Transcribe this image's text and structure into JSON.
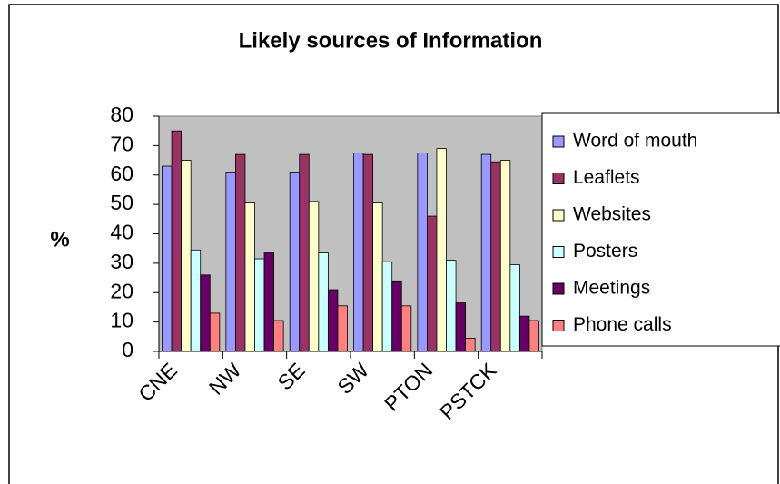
{
  "chart_data": {
    "type": "bar",
    "title": "Likely sources of Information",
    "y_label": "%",
    "categories": [
      "CNE",
      "NW",
      "SE",
      "SW",
      "PTON",
      "PSTCK"
    ],
    "series": [
      {
        "name": "Word of mouth",
        "color": "#9999ff",
        "values": [
          63,
          61,
          61,
          67.5,
          67.5,
          67
        ]
      },
      {
        "name": "Leaflets",
        "color": "#993366",
        "values": [
          75,
          67,
          67,
          67,
          46,
          64.5
        ]
      },
      {
        "name": "Websites",
        "color": "#ffffcc",
        "values": [
          65,
          50.5,
          51,
          50.5,
          69,
          65
        ]
      },
      {
        "name": "Posters",
        "color": "#ccffff",
        "values": [
          34.5,
          31.5,
          33.5,
          30.5,
          31,
          29.5
        ]
      },
      {
        "name": "Meetings",
        "color": "#660066",
        "values": [
          26,
          33.5,
          21,
          24,
          16.5,
          12
        ]
      },
      {
        "name": "Phone calls",
        "color": "#ff8080",
        "values": [
          13,
          10.5,
          15.5,
          15.5,
          4.5,
          10.5
        ]
      }
    ],
    "ylim": [
      0,
      80
    ],
    "yticks": [
      0,
      10,
      20,
      30,
      40,
      50,
      60,
      70,
      80
    ],
    "plot_background": "#c0c0c0",
    "legend": "right"
  }
}
